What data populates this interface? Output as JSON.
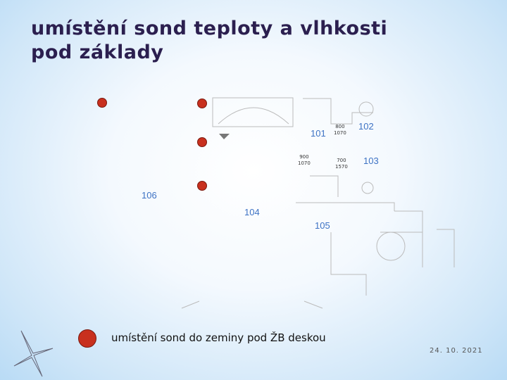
{
  "header": {
    "title_lines": [
      "umístění sond teploty a vlhkosti",
      "pod základy"
    ]
  },
  "plan": {
    "rooms": [
      "101",
      "102",
      "103",
      "104",
      "105",
      "106"
    ],
    "dimensions": [
      [
        "800",
        "1070"
      ],
      [
        "900",
        "1070"
      ],
      [
        "700",
        "1570"
      ]
    ]
  },
  "legend": {
    "text": "umístění sond do zeminy pod ŽB deskou"
  },
  "footer": {
    "date": "24. 10. 2021"
  }
}
